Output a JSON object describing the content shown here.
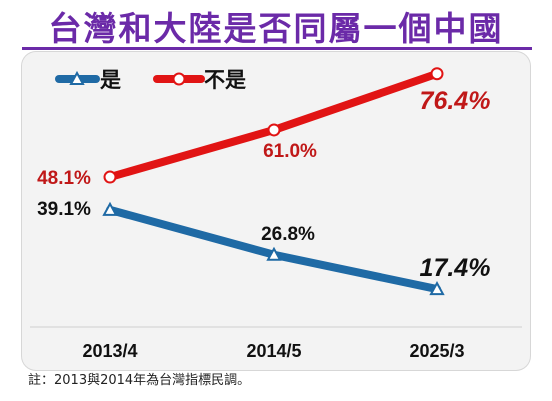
{
  "title": "台灣和大陸是否同屬一個中國",
  "note": "註：2013與2014年為台灣指標民調。",
  "colors": {
    "title": "#6b2aa8",
    "yes": "#1f6aa5",
    "no": "#e11414",
    "panel": "#f3f3f3"
  },
  "chart_data": {
    "type": "line",
    "title": "台灣和大陸是否同屬一個中國",
    "x": [
      "2013/4",
      "2014/5",
      "2025/3"
    ],
    "ylim": [
      0,
      100
    ],
    "legend_position": "top-left",
    "grid": false,
    "series": [
      {
        "name": "是",
        "values": [
          39.1,
          26.8,
          17.4
        ],
        "labels": [
          "39.1%",
          "26.8%",
          "17.4%"
        ],
        "color": "#1f6aa5",
        "marker": "triangle"
      },
      {
        "name": "不是",
        "values": [
          48.1,
          61.0,
          76.4
        ],
        "labels": [
          "48.1%",
          "61.0%",
          "76.4%"
        ],
        "color": "#e11414",
        "marker": "circle"
      }
    ]
  }
}
